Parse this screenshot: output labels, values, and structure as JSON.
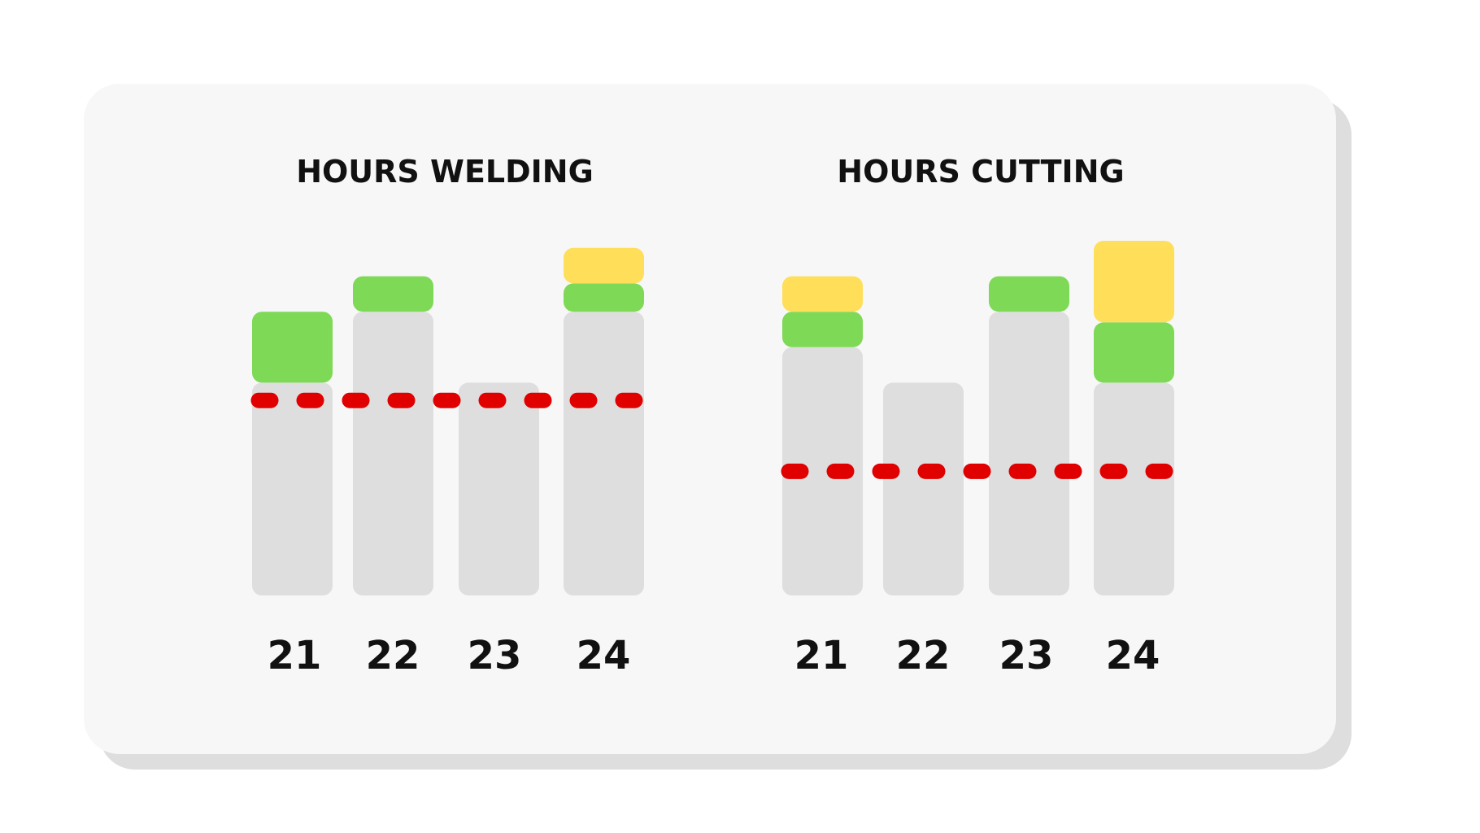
{
  "chart_data": [
    {
      "type": "bar",
      "title": "HOURS WELDING",
      "categories": [
        "21",
        "22",
        "23",
        "24"
      ],
      "series": [
        {
          "values": [
            6,
            8,
            6,
            8
          ],
          "color": "#dedede"
        },
        {
          "values": [
            2,
            1,
            0,
            0.8
          ],
          "color": "#7ed957"
        },
        {
          "values": [
            0,
            0,
            0,
            1
          ],
          "color": "#ffde59"
        }
      ],
      "reference_line": {
        "value": 5.5,
        "style": "dashed",
        "color": "#e00000"
      },
      "ylim": [
        0,
        10
      ],
      "grid": false
    },
    {
      "type": "bar",
      "title": "HOURS CUTTING",
      "categories": [
        "21",
        "22",
        "23",
        "24"
      ],
      "series": [
        {
          "values": [
            7,
            6,
            8,
            6
          ],
          "color": "#dedede"
        },
        {
          "values": [
            1,
            0,
            1,
            1.7
          ],
          "color": "#7ed957"
        },
        {
          "values": [
            1,
            0,
            0,
            2.3
          ],
          "color": "#ffde59"
        }
      ],
      "reference_line": {
        "value": 3.5,
        "style": "dashed",
        "color": "#e00000"
      },
      "ylim": [
        0,
        10
      ],
      "grid": false
    }
  ]
}
